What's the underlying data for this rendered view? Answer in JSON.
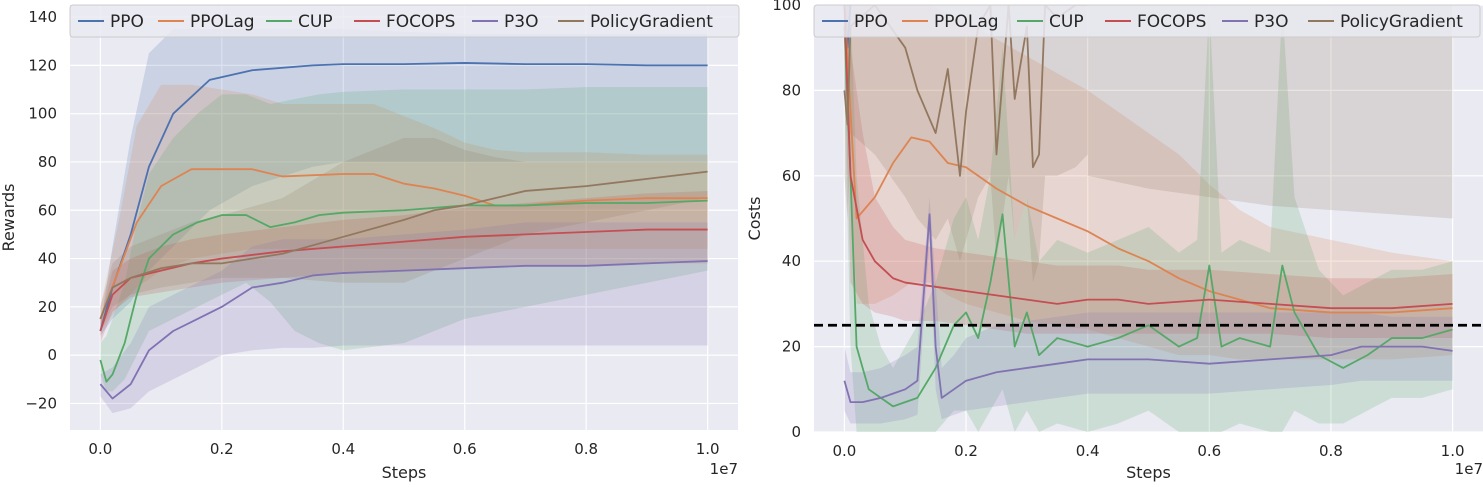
{
  "chart_data": [
    {
      "type": "line",
      "xlabel": "Steps",
      "ylabel": "Rewards",
      "x_offset_label": "1e7",
      "xlim": [
        -0.05,
        1.05
      ],
      "ylim": [
        -31,
        145
      ],
      "xticks": [
        0.0,
        0.2,
        0.4,
        0.6,
        0.8,
        1.0
      ],
      "xtick_labels": [
        "0.0",
        "0.2",
        "0.4",
        "0.6",
        "0.8",
        "1.0"
      ],
      "yticks": [
        -20,
        0,
        20,
        40,
        60,
        80,
        100,
        120,
        140
      ],
      "ytick_labels": [
        "−20",
        "0",
        "20",
        "40",
        "60",
        "80",
        "100",
        "120",
        "140"
      ],
      "grid": true,
      "legend_position": "top",
      "series": [
        {
          "name": "PPO",
          "color": "#4c72b0",
          "x": [
            0.0,
            0.02,
            0.05,
            0.08,
            0.12,
            0.18,
            0.25,
            0.35,
            0.4,
            0.5,
            0.6,
            0.7,
            0.8,
            0.9,
            1.0
          ],
          "y": [
            10,
            28,
            50,
            78,
            100,
            114,
            118,
            120,
            120.5,
            120.5,
            121,
            120.5,
            120.5,
            120,
            120
          ],
          "upper": [
            12,
            45,
            90,
            125,
            135,
            135,
            135,
            135,
            135,
            134,
            133,
            133,
            133,
            133,
            133
          ],
          "lower": [
            8,
            15,
            22,
            35,
            45,
            60,
            70,
            78,
            80,
            80,
            80,
            80,
            80,
            80,
            80
          ]
        },
        {
          "name": "PPOLag",
          "color": "#dd8452",
          "x": [
            0.0,
            0.03,
            0.06,
            0.1,
            0.15,
            0.2,
            0.25,
            0.3,
            0.4,
            0.45,
            0.5,
            0.55,
            0.6,
            0.65,
            0.7,
            0.8,
            0.9,
            1.0
          ],
          "y": [
            15,
            35,
            55,
            70,
            77,
            77,
            77,
            74,
            75,
            75,
            71,
            69,
            66,
            62,
            62,
            64,
            65,
            65
          ],
          "upper": [
            20,
            55,
            95,
            112,
            112,
            110,
            108,
            104,
            104,
            104,
            99,
            94,
            88,
            85,
            84,
            84,
            83,
            83
          ],
          "lower": [
            10,
            20,
            28,
            35,
            40,
            42,
            44,
            44,
            44,
            44,
            44,
            44,
            44,
            44,
            44,
            44,
            44,
            44
          ]
        },
        {
          "name": "CUP",
          "color": "#55a868",
          "x": [
            0.0,
            0.01,
            0.02,
            0.04,
            0.06,
            0.08,
            0.12,
            0.16,
            0.2,
            0.24,
            0.28,
            0.32,
            0.36,
            0.4,
            0.5,
            0.6,
            0.7,
            0.8,
            0.9,
            1.0
          ],
          "y": [
            -2,
            -11,
            -8,
            5,
            25,
            40,
            50,
            55,
            58,
            58,
            53,
            55,
            58,
            59,
            60,
            62,
            62,
            63,
            63,
            64
          ],
          "upper": [
            5,
            8,
            15,
            30,
            55,
            75,
            90,
            100,
            108,
            108,
            104,
            106,
            108,
            109,
            110,
            110,
            110,
            111,
            111,
            111
          ],
          "lower": [
            -8,
            -15,
            -15,
            -10,
            0,
            10,
            15,
            20,
            25,
            30,
            22,
            10,
            5,
            2,
            5,
            15,
            20,
            25,
            30,
            35
          ]
        },
        {
          "name": "FOCOPS",
          "color": "#c44e52",
          "x": [
            0.0,
            0.02,
            0.05,
            0.1,
            0.15,
            0.2,
            0.3,
            0.4,
            0.5,
            0.6,
            0.7,
            0.8,
            0.9,
            1.0
          ],
          "y": [
            10,
            25,
            32,
            35,
            38,
            40,
            43,
            45,
            47,
            49,
            50,
            51,
            52,
            52
          ],
          "upper": [
            15,
            35,
            40,
            45,
            48,
            50,
            53,
            56,
            58,
            61,
            63,
            65,
            67,
            68
          ],
          "lower": [
            5,
            18,
            24,
            26,
            28,
            30,
            32,
            34,
            35,
            36,
            37,
            37,
            38,
            38
          ]
        },
        {
          "name": "P3O",
          "color": "#8172b2",
          "x": [
            0.0,
            0.02,
            0.05,
            0.08,
            0.12,
            0.16,
            0.2,
            0.25,
            0.3,
            0.35,
            0.4,
            0.5,
            0.6,
            0.7,
            0.8,
            0.9,
            1.0
          ],
          "y": [
            -12,
            -18,
            -12,
            2,
            10,
            15,
            20,
            28,
            30,
            33,
            34,
            35,
            36,
            37,
            37,
            38,
            39
          ],
          "upper": [
            -8,
            -5,
            5,
            20,
            25,
            30,
            35,
            45,
            48,
            48,
            48,
            50,
            52,
            55,
            55,
            55,
            55
          ],
          "lower": [
            -17,
            -24,
            -22,
            -15,
            -10,
            -5,
            0,
            2,
            3,
            3,
            4,
            4,
            4,
            4,
            4,
            4,
            4
          ]
        },
        {
          "name": "PolicyGradient",
          "color": "#937860",
          "x": [
            0.0,
            0.02,
            0.05,
            0.1,
            0.15,
            0.2,
            0.3,
            0.4,
            0.5,
            0.55,
            0.6,
            0.65,
            0.7,
            0.8,
            0.9,
            1.0
          ],
          "y": [
            15,
            28,
            32,
            36,
            38,
            38,
            42,
            49,
            56,
            60,
            62,
            65,
            68,
            70,
            73,
            76
          ],
          "upper": [
            20,
            38,
            45,
            50,
            55,
            58,
            65,
            80,
            90,
            90,
            85,
            82,
            80,
            80,
            80,
            80
          ],
          "lower": [
            10,
            20,
            25,
            28,
            30,
            32,
            32,
            30,
            30,
            35,
            40,
            45,
            50,
            55,
            60,
            65
          ]
        }
      ]
    },
    {
      "type": "line",
      "xlabel": "Steps",
      "ylabel": "Costs",
      "x_offset_label": "1e7",
      "xlim": [
        -0.05,
        1.05
      ],
      "ylim": [
        0,
        100
      ],
      "xticks": [
        0.0,
        0.2,
        0.4,
        0.6,
        0.8,
        1.0
      ],
      "xtick_labels": [
        "0.0",
        "0.2",
        "0.4",
        "0.6",
        "0.8",
        "1.0"
      ],
      "yticks": [
        0,
        20,
        40,
        60,
        80,
        100
      ],
      "ytick_labels": [
        "0",
        "20",
        "40",
        "60",
        "80",
        "100"
      ],
      "grid": true,
      "legend_position": "top",
      "threshold": 25,
      "series": [
        {
          "name": "PPO",
          "color": "#4c72b0",
          "x": [
            0.0,
            0.005,
            0.01
          ],
          "y": [
            100,
            90,
            100
          ],
          "upper": [
            100,
            100,
            100
          ],
          "lower": [
            80,
            70,
            85
          ]
        },
        {
          "name": "PPOLag",
          "color": "#dd8452",
          "x": [
            0.0,
            0.02,
            0.05,
            0.08,
            0.11,
            0.14,
            0.17,
            0.2,
            0.25,
            0.3,
            0.35,
            0.4,
            0.45,
            0.5,
            0.55,
            0.6,
            0.65,
            0.7,
            0.8,
            0.9,
            1.0
          ],
          "y": [
            100,
            50,
            55,
            63,
            69,
            68,
            63,
            62,
            57,
            53,
            50,
            47,
            43,
            40,
            36,
            33,
            31,
            29,
            28,
            28,
            29
          ],
          "upper": [
            100,
            100,
            100,
            100,
            100,
            100,
            98,
            96,
            92,
            88,
            84,
            80,
            75,
            70,
            65,
            58,
            52,
            48,
            45,
            42,
            40
          ],
          "lower": [
            90,
            30,
            30,
            32,
            35,
            35,
            32,
            30,
            28,
            26,
            25,
            24,
            22,
            20,
            18,
            18,
            17,
            17,
            17,
            17,
            18
          ]
        },
        {
          "name": "CUP",
          "color": "#55a868",
          "x": [
            0.0,
            0.01,
            0.02,
            0.04,
            0.06,
            0.08,
            0.12,
            0.15,
            0.18,
            0.2,
            0.22,
            0.24,
            0.26,
            0.28,
            0.3,
            0.32,
            0.35,
            0.4,
            0.45,
            0.5,
            0.55,
            0.58,
            0.6,
            0.62,
            0.65,
            0.7,
            0.72,
            0.74,
            0.78,
            0.82,
            0.86,
            0.9,
            0.95,
            1.0
          ],
          "y": [
            95,
            60,
            20,
            10,
            8,
            6,
            8,
            15,
            25,
            28,
            22,
            35,
            51,
            20,
            28,
            18,
            22,
            20,
            22,
            25,
            20,
            22,
            39,
            20,
            22,
            20,
            39,
            28,
            18,
            15,
            18,
            22,
            22,
            24
          ],
          "upper": [
            100,
            100,
            60,
            30,
            20,
            15,
            25,
            35,
            50,
            55,
            45,
            60,
            90,
            45,
            55,
            40,
            45,
            42,
            45,
            48,
            42,
            45,
            100,
            42,
            45,
            42,
            100,
            55,
            38,
            32,
            35,
            38,
            38,
            40
          ],
          "lower": [
            80,
            20,
            0,
            0,
            0,
            0,
            0,
            0,
            5,
            5,
            0,
            5,
            10,
            0,
            5,
            0,
            2,
            0,
            2,
            5,
            0,
            0,
            0,
            0,
            2,
            0,
            0,
            5,
            2,
            2,
            5,
            8,
            8,
            10
          ]
        },
        {
          "name": "FOCOPS",
          "color": "#c44e52",
          "x": [
            0.0,
            0.01,
            0.03,
            0.05,
            0.08,
            0.1,
            0.15,
            0.2,
            0.25,
            0.3,
            0.35,
            0.4,
            0.45,
            0.5,
            0.6,
            0.7,
            0.8,
            0.9,
            1.0
          ],
          "y": [
            100,
            60,
            45,
            40,
            36,
            35,
            34,
            33,
            32,
            31,
            30,
            31,
            31,
            30,
            31,
            30,
            29,
            29,
            30
          ],
          "upper": [
            100,
            90,
            70,
            55,
            48,
            45,
            43,
            42,
            41,
            40,
            39,
            39,
            39,
            38,
            38,
            37,
            36,
            36,
            37
          ],
          "lower": [
            90,
            35,
            30,
            28,
            27,
            26,
            26,
            25,
            24,
            23,
            23,
            23,
            23,
            23,
            23,
            23,
            22,
            22,
            22
          ]
        },
        {
          "name": "P3O",
          "color": "#8172b2",
          "x": [
            0.0,
            0.01,
            0.03,
            0.06,
            0.1,
            0.12,
            0.14,
            0.15,
            0.16,
            0.18,
            0.2,
            0.25,
            0.3,
            0.35,
            0.4,
            0.5,
            0.6,
            0.7,
            0.8,
            0.85,
            0.9,
            0.95,
            1.0
          ],
          "y": [
            12,
            7,
            7,
            8,
            10,
            12,
            51,
            20,
            8,
            10,
            12,
            14,
            15,
            16,
            17,
            17,
            16,
            17,
            18,
            20,
            20,
            20,
            19
          ],
          "upper": [
            20,
            14,
            14,
            15,
            18,
            20,
            55,
            35,
            15,
            18,
            22,
            25,
            26,
            27,
            28,
            28,
            28,
            28,
            28,
            28,
            27,
            27,
            27
          ],
          "lower": [
            5,
            2,
            2,
            2,
            3,
            4,
            45,
            10,
            3,
            4,
            5,
            6,
            7,
            8,
            9,
            9,
            9,
            10,
            11,
            12,
            12,
            12,
            12
          ]
        },
        {
          "name": "PolicyGradient",
          "color": "#937860",
          "x": [
            0.0,
            0.005,
            0.01,
            0.05,
            0.1,
            0.12,
            0.15,
            0.17,
            0.19,
            0.2,
            0.22,
            0.24,
            0.25,
            0.27,
            0.28,
            0.3,
            0.31,
            0.32,
            0.33,
            0.35,
            0.38,
            0.4
          ],
          "y": [
            80,
            72,
            95,
            100,
            90,
            80,
            70,
            85,
            60,
            75,
            95,
            100,
            65,
            100,
            78,
            95,
            62,
            65,
            100,
            97,
            100,
            100
          ],
          "upper": [
            100,
            100,
            100,
            100,
            100,
            100,
            100,
            100,
            100,
            100,
            100,
            100,
            100,
            100,
            100,
            100,
            100,
            100,
            100,
            100,
            100,
            100
          ],
          "lower": [
            60,
            50,
            70,
            65,
            55,
            50,
            45,
            50,
            40,
            45,
            55,
            60,
            40,
            60,
            45,
            55,
            35,
            40,
            60,
            60,
            62,
            65
          ],
          "band_extra": {
            "x": [
              0.4,
              0.5,
              0.6,
              0.7,
              0.8,
              0.9,
              1.0
            ],
            "upper": [
              100,
              100,
              100,
              100,
              100,
              100,
              100
            ],
            "lower": [
              60,
              57,
              55,
              53,
              52,
              51,
              50
            ]
          }
        }
      ]
    }
  ]
}
